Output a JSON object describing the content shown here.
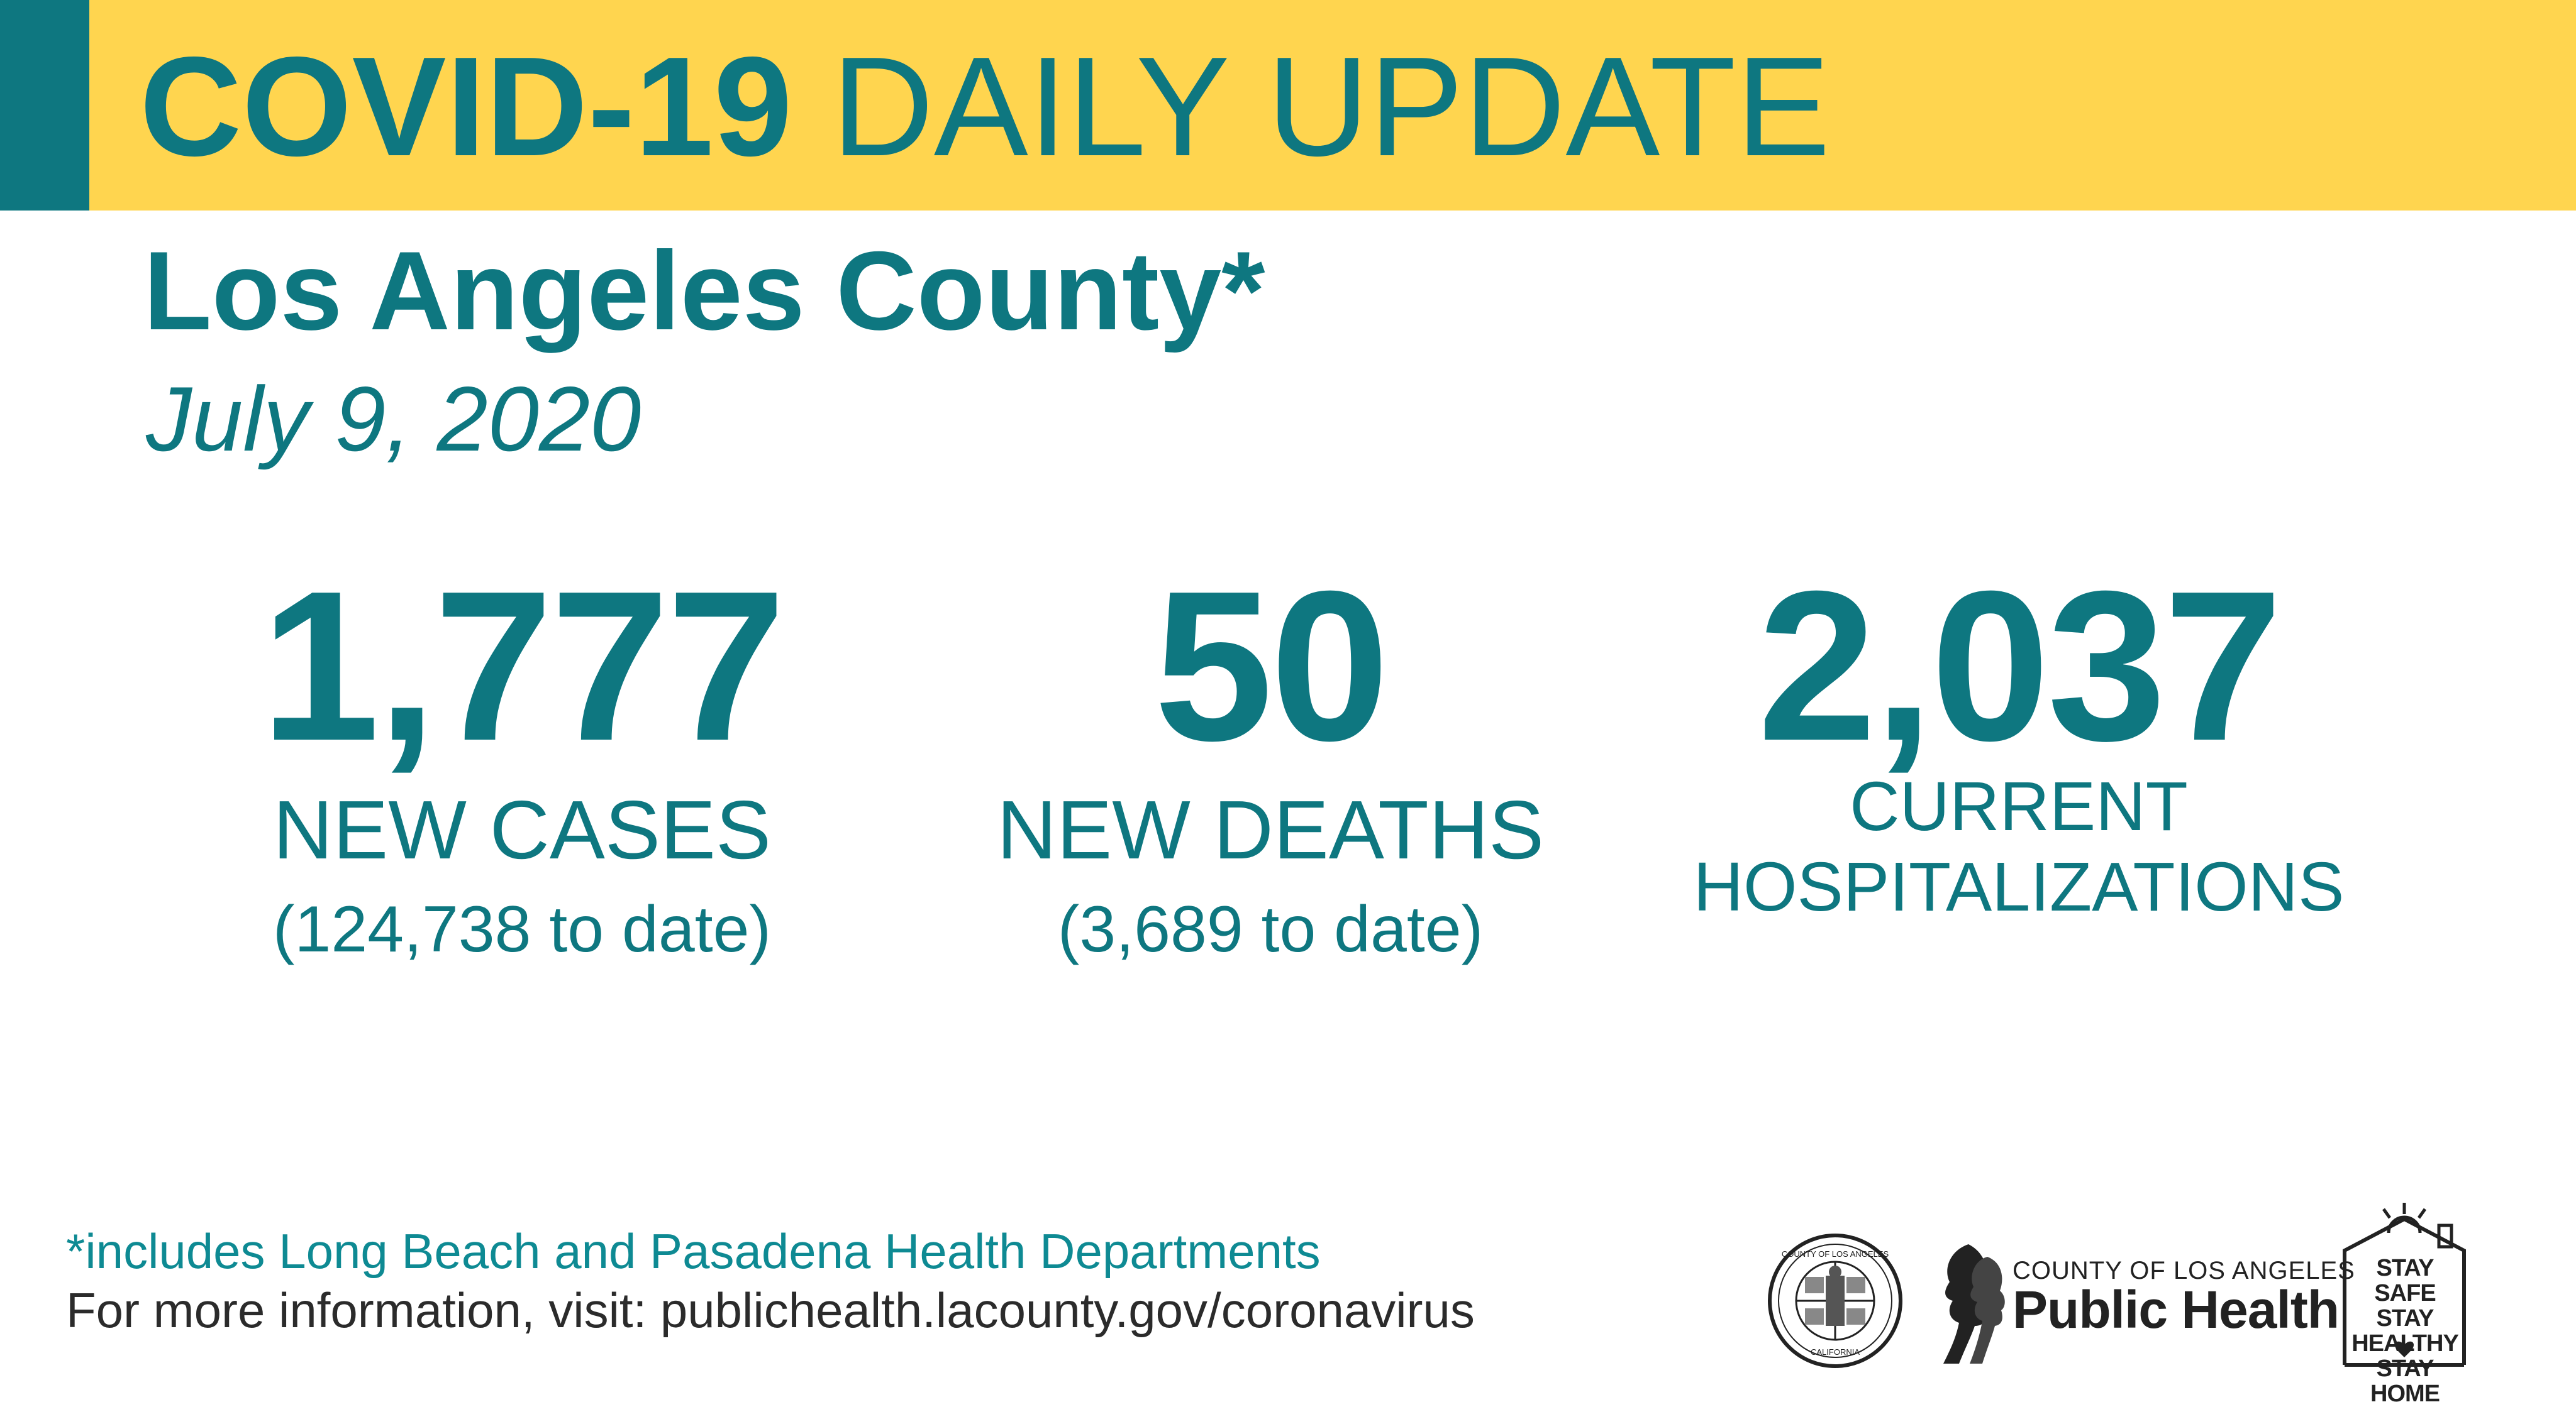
{
  "banner": {
    "title_bold": "COVID-19",
    "title_rest": "DAILY UPDATE"
  },
  "heading": {
    "county": "Los Angeles County*",
    "date": "July 9, 2020"
  },
  "stats": {
    "cases": {
      "value": "1,777",
      "label": "NEW CASES",
      "to_date": "(124,738 to date)"
    },
    "deaths": {
      "value": "50",
      "label": "NEW DEATHS",
      "to_date": "(3,689 to date)"
    },
    "hospitalizations": {
      "value": "2,037",
      "label_line1": "CURRENT",
      "label_line2": "HOSPITALIZATIONS"
    }
  },
  "footer": {
    "footnote": "*includes Long Beach and Pasadena Health Departments",
    "more_info": "For more information, visit: publichealth.lacounty.gov/coronavirus"
  },
  "logos": {
    "seal_text_top": "COUNTY OF LOS ANGELES",
    "seal_text_bottom": "CALIFORNIA",
    "public_health_top": "COUNTY OF LOS ANGELES",
    "public_health_main": "Public Health",
    "stay_line1": "STAY SAFE",
    "stay_line2": "STAY HEALTHY",
    "stay_line3": "STAY HOME"
  },
  "colors": {
    "teal": "#0e7780",
    "yellow": "#ffd54f"
  }
}
